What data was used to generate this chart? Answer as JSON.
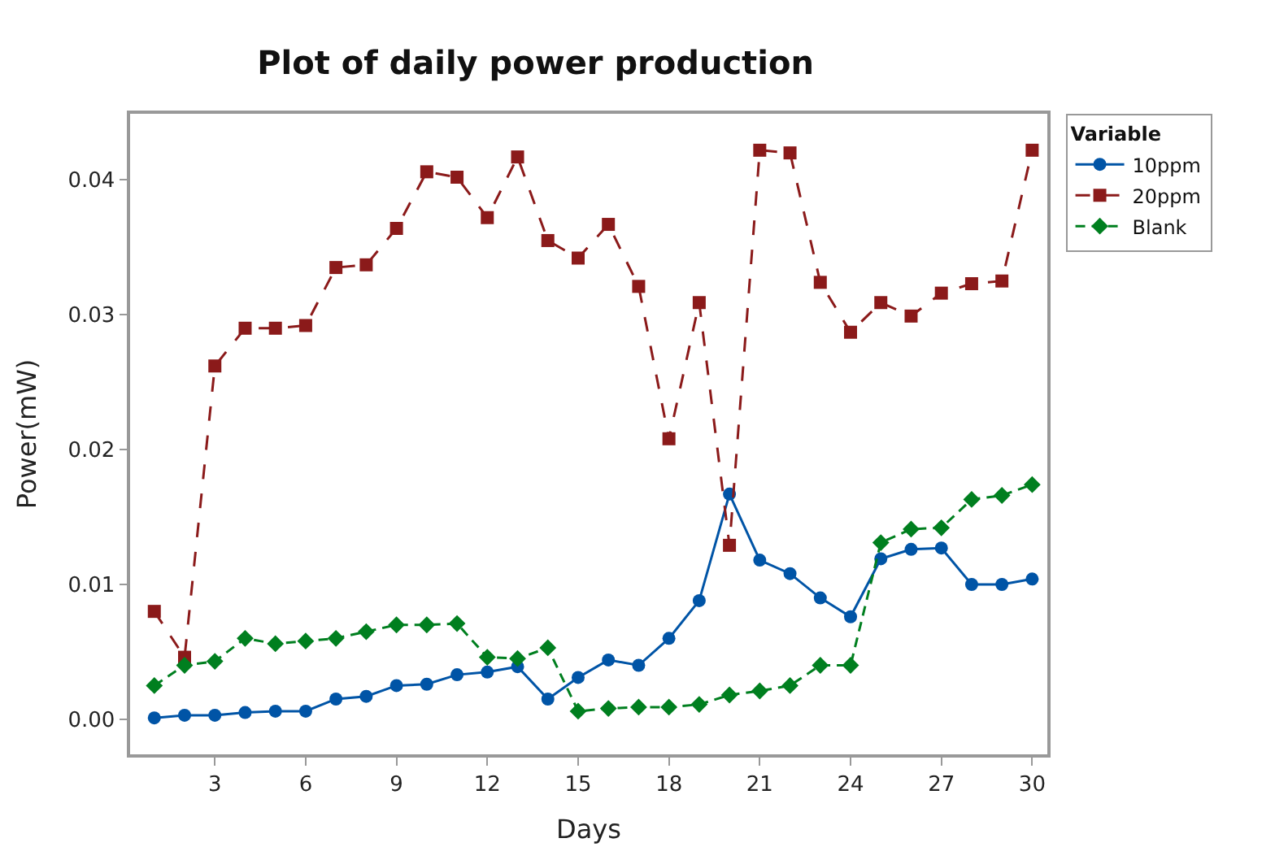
{
  "chart_data": {
    "type": "line",
    "title": "Plot of daily power production",
    "xlabel": "Days",
    "ylabel": "Power(mW)",
    "legend_title": "Variable",
    "legend": "right",
    "x": [
      1,
      2,
      3,
      4,
      5,
      6,
      7,
      8,
      9,
      10,
      11,
      12,
      13,
      14,
      15,
      16,
      17,
      18,
      19,
      20,
      21,
      22,
      23,
      24,
      25,
      26,
      27,
      28,
      29,
      30
    ],
    "xlim": [
      0.2,
      30.5
    ],
    "xticks": [
      3,
      6,
      9,
      12,
      15,
      18,
      21,
      24,
      27,
      30
    ],
    "ylim": [
      -0.0026,
      0.0449
    ],
    "yticks": [
      {
        "value": 0,
        "label": "0.00"
      },
      {
        "value": 0.01,
        "label": "0.01"
      },
      {
        "value": 0.02,
        "label": "0.02"
      },
      {
        "value": 0.03,
        "label": "0.03"
      },
      {
        "value": 0.04,
        "label": "0.04"
      }
    ],
    "series": [
      {
        "name": "10ppm",
        "color": "#0054a6",
        "marker": "circle",
        "line_style": "solid",
        "values": [
          0.0001,
          0.0003,
          0.0003,
          0.0005,
          0.0006,
          0.0006,
          0.0015,
          0.0017,
          0.0025,
          0.0026,
          0.0033,
          0.0035,
          0.0039,
          0.0015,
          0.0031,
          0.0044,
          0.004,
          0.006,
          0.0088,
          0.0167,
          0.0118,
          0.0108,
          0.009,
          0.0076,
          0.0119,
          0.0126,
          0.0127,
          0.01,
          0.01,
          0.0104
        ]
      },
      {
        "name": "20ppm",
        "color": "#8b1a1a",
        "marker": "square",
        "line_style": "dashed",
        "values": [
          0.008,
          0.0046,
          0.0262,
          0.029,
          0.029,
          0.0292,
          0.0335,
          0.0337,
          0.0364,
          0.0406,
          0.0402,
          0.0372,
          0.0417,
          0.0355,
          0.0342,
          0.0367,
          0.0321,
          0.0208,
          0.0309,
          0.0129,
          0.0422,
          0.042,
          0.0324,
          0.0287,
          0.0309,
          0.0299,
          0.0316,
          0.0323,
          0.0325,
          0.0422
        ]
      },
      {
        "name": "Blank",
        "color": "#007f1f",
        "marker": "diamond",
        "line_style": "dashed",
        "values": [
          0.0025,
          0.004,
          0.0043,
          0.006,
          0.0056,
          0.0058,
          0.006,
          0.0065,
          0.007,
          0.007,
          0.0071,
          0.0046,
          0.0045,
          0.0053,
          0.0006,
          0.0008,
          0.0009,
          0.0009,
          0.0011,
          0.0018,
          0.0021,
          0.0025,
          0.004,
          0.004,
          0.0131,
          0.0141,
          0.0142,
          0.0163,
          0.0166,
          0.0174
        ]
      }
    ]
  }
}
